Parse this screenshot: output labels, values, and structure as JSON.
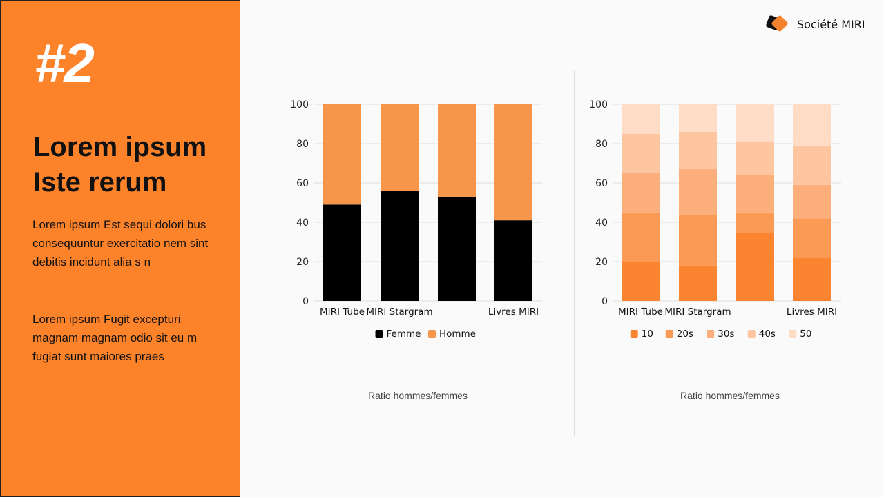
{
  "slide": {
    "number": "#2",
    "title_line1": "Lorem ipsum",
    "title_line2": "Iste rerum",
    "paragraph1": "Lorem ipsum Est sequi dolori bus consequuntur exercitatio nem sint debitis incidunt alia s n",
    "paragraph2": "Lorem ipsum Fugit excepturi magnam magnam odio sit eu m fugiat sunt maiores praes",
    "brand": "Société MIRI"
  },
  "colors": {
    "panel": "#fd832b",
    "femme": "#000000",
    "homme": "#f7964a"
  },
  "chart_data": [
    {
      "type": "bar",
      "stacked": true,
      "caption": "Ratio hommes/femmes",
      "categories": [
        "MIRI Tube",
        "MIRI Stargram",
        "",
        "Livres MIRI"
      ],
      "ylim": [
        0,
        100
      ],
      "yticks": [
        "0",
        "20",
        "40",
        "60",
        "80",
        "100"
      ],
      "legend_position": "bottom",
      "series": [
        {
          "name": "Femme",
          "color": "#000000",
          "values": [
            49,
            56,
            53,
            41
          ]
        },
        {
          "name": "Homme",
          "color": "#f7964a",
          "values": [
            51,
            44,
            47,
            59
          ]
        }
      ]
    },
    {
      "type": "bar",
      "stacked": true,
      "caption": "Ratio hommes/femmes",
      "categories": [
        "MIRI Tube",
        "MIRI Stargram",
        "",
        "Livres MIRI"
      ],
      "ylim": [
        0,
        100
      ],
      "yticks": [
        "0",
        "20",
        "40",
        "60",
        "80",
        "100"
      ],
      "legend_position": "bottom",
      "series": [
        {
          "name": "10",
          "color": "#fb8430",
          "values": [
            20,
            18,
            35,
            22
          ]
        },
        {
          "name": "20s",
          "color": "#fb9a55",
          "values": [
            25,
            26,
            10,
            20
          ]
        },
        {
          "name": "30s",
          "color": "#fcaf7a",
          "values": [
            20,
            23,
            19,
            17
          ]
        },
        {
          "name": "40s",
          "color": "#fdc6a0",
          "values": [
            20,
            19,
            17,
            20
          ]
        },
        {
          "name": "50",
          "color": "#fedcc6",
          "values": [
            15,
            14,
            19,
            21
          ]
        }
      ]
    }
  ]
}
